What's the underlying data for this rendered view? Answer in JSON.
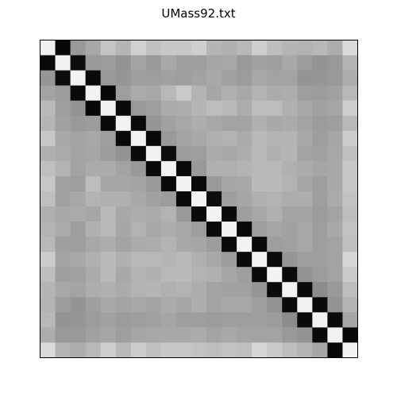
{
  "chart_data": {
    "type": "heatmap",
    "title": "UMass92.txt",
    "n": 21,
    "colormap": "gray",
    "axes_visible": false,
    "grid": false,
    "colors": {
      "diagonal": "#ffffff",
      "off_diagonal": "#000000",
      "frame": "#000000"
    },
    "values": [
      [
        0.94,
        0.03,
        0.6,
        0.66,
        0.77,
        0.71,
        0.82,
        0.75,
        0.78,
        0.78,
        0.81,
        0.71,
        0.69,
        0.72,
        0.81,
        0.74,
        0.71,
        0.7,
        0.72,
        0.68,
        0.85
      ],
      [
        0.04,
        0.95,
        0.05,
        0.6,
        0.61,
        0.58,
        0.64,
        0.6,
        0.66,
        0.62,
        0.62,
        0.65,
        0.66,
        0.6,
        0.63,
        0.62,
        0.66,
        0.61,
        0.58,
        0.6,
        0.7
      ],
      [
        0.59,
        0.05,
        0.95,
        0.04,
        0.6,
        0.59,
        0.62,
        0.62,
        0.63,
        0.62,
        0.64,
        0.66,
        0.63,
        0.61,
        0.66,
        0.64,
        0.64,
        0.58,
        0.59,
        0.6,
        0.68
      ],
      [
        0.64,
        0.61,
        0.04,
        0.95,
        0.03,
        0.62,
        0.67,
        0.66,
        0.72,
        0.79,
        0.7,
        0.65,
        0.69,
        0.66,
        0.7,
        0.67,
        0.68,
        0.62,
        0.61,
        0.63,
        0.72
      ],
      [
        0.73,
        0.62,
        0.58,
        0.03,
        0.95,
        0.04,
        0.6,
        0.62,
        0.67,
        0.68,
        0.71,
        0.74,
        0.73,
        0.68,
        0.74,
        0.74,
        0.69,
        0.66,
        0.63,
        0.65,
        0.81
      ],
      [
        0.71,
        0.63,
        0.6,
        0.61,
        0.04,
        0.95,
        0.04,
        0.59,
        0.63,
        0.66,
        0.68,
        0.66,
        0.64,
        0.64,
        0.69,
        0.66,
        0.67,
        0.64,
        0.61,
        0.62,
        0.72
      ],
      [
        0.78,
        0.66,
        0.64,
        0.66,
        0.62,
        0.04,
        0.95,
        0.04,
        0.6,
        0.64,
        0.66,
        0.69,
        0.7,
        0.67,
        0.72,
        0.7,
        0.7,
        0.66,
        0.62,
        0.65,
        0.8
      ],
      [
        0.69,
        0.67,
        0.64,
        0.65,
        0.61,
        0.58,
        0.04,
        0.95,
        0.05,
        0.61,
        0.62,
        0.67,
        0.66,
        0.68,
        0.72,
        0.69,
        0.71,
        0.64,
        0.63,
        0.66,
        0.75
      ],
      [
        0.75,
        0.7,
        0.64,
        0.67,
        0.67,
        0.64,
        0.6,
        0.04,
        0.95,
        0.04,
        0.6,
        0.69,
        0.69,
        0.7,
        0.72,
        0.72,
        0.69,
        0.67,
        0.65,
        0.66,
        0.78
      ],
      [
        0.78,
        0.63,
        0.62,
        0.74,
        0.65,
        0.65,
        0.64,
        0.6,
        0.04,
        0.95,
        0.04,
        0.6,
        0.65,
        0.66,
        0.73,
        0.73,
        0.7,
        0.65,
        0.62,
        0.66,
        0.78
      ],
      [
        0.75,
        0.63,
        0.66,
        0.7,
        0.69,
        0.69,
        0.66,
        0.63,
        0.61,
        0.04,
        0.95,
        0.05,
        0.62,
        0.65,
        0.69,
        0.7,
        0.68,
        0.68,
        0.62,
        0.67,
        0.76
      ],
      [
        0.69,
        0.66,
        0.67,
        0.65,
        0.73,
        0.66,
        0.68,
        0.67,
        0.7,
        0.6,
        0.04,
        0.95,
        0.04,
        0.62,
        0.66,
        0.69,
        0.64,
        0.64,
        0.61,
        0.64,
        0.74
      ],
      [
        0.7,
        0.67,
        0.62,
        0.69,
        0.73,
        0.65,
        0.7,
        0.66,
        0.68,
        0.66,
        0.62,
        0.04,
        0.95,
        0.04,
        0.62,
        0.65,
        0.63,
        0.66,
        0.62,
        0.66,
        0.76
      ],
      [
        0.72,
        0.62,
        0.62,
        0.66,
        0.68,
        0.64,
        0.67,
        0.68,
        0.7,
        0.66,
        0.65,
        0.61,
        0.04,
        0.95,
        0.04,
        0.62,
        0.63,
        0.66,
        0.62,
        0.64,
        0.75
      ],
      [
        0.8,
        0.64,
        0.66,
        0.69,
        0.73,
        0.69,
        0.72,
        0.72,
        0.71,
        0.73,
        0.69,
        0.66,
        0.61,
        0.04,
        0.95,
        0.04,
        0.59,
        0.62,
        0.62,
        0.64,
        0.84
      ],
      [
        0.74,
        0.62,
        0.63,
        0.67,
        0.73,
        0.66,
        0.7,
        0.69,
        0.72,
        0.73,
        0.7,
        0.69,
        0.65,
        0.62,
        0.04,
        0.95,
        0.04,
        0.58,
        0.61,
        0.64,
        0.79
      ],
      [
        0.71,
        0.66,
        0.64,
        0.68,
        0.69,
        0.67,
        0.7,
        0.71,
        0.69,
        0.7,
        0.68,
        0.64,
        0.63,
        0.63,
        0.59,
        0.04,
        0.95,
        0.04,
        0.55,
        0.6,
        0.74
      ],
      [
        0.7,
        0.61,
        0.58,
        0.62,
        0.66,
        0.64,
        0.66,
        0.64,
        0.67,
        0.65,
        0.68,
        0.64,
        0.66,
        0.66,
        0.62,
        0.58,
        0.04,
        0.95,
        0.04,
        0.58,
        0.7
      ],
      [
        0.72,
        0.58,
        0.59,
        0.61,
        0.63,
        0.61,
        0.62,
        0.63,
        0.65,
        0.62,
        0.62,
        0.61,
        0.62,
        0.62,
        0.62,
        0.61,
        0.55,
        0.04,
        0.95,
        0.04,
        0.65
      ],
      [
        0.68,
        0.6,
        0.6,
        0.63,
        0.65,
        0.62,
        0.65,
        0.66,
        0.66,
        0.66,
        0.67,
        0.64,
        0.66,
        0.64,
        0.64,
        0.64,
        0.6,
        0.58,
        0.04,
        0.95,
        0.03
      ],
      [
        0.85,
        0.7,
        0.68,
        0.72,
        0.81,
        0.72,
        0.8,
        0.75,
        0.78,
        0.78,
        0.76,
        0.74,
        0.76,
        0.75,
        0.84,
        0.79,
        0.74,
        0.7,
        0.65,
        0.03,
        0.95
      ]
    ]
  }
}
